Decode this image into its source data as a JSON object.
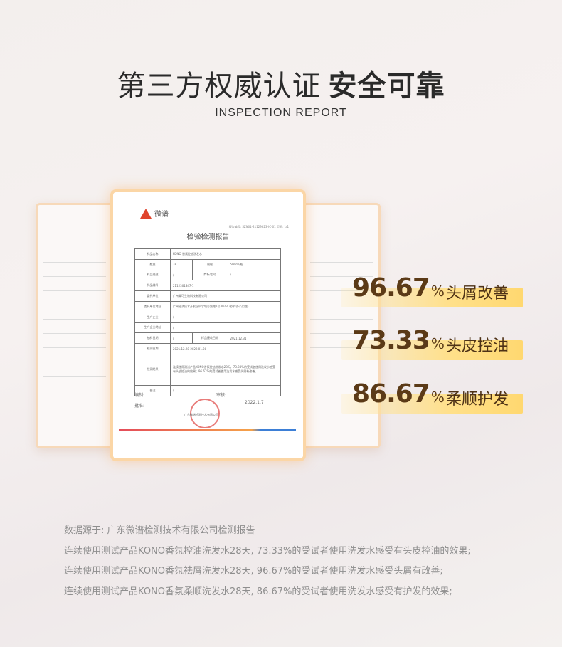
{
  "header": {
    "title_light": "第三方权威认证",
    "title_bold": "安全可靠",
    "subtitle": "INSPECTION REPORT"
  },
  "report": {
    "logo_text": "微谱",
    "doc_no": "报告编号: SZN01-21129823-JC-01  页码: 1/1",
    "title": "检验检测报告",
    "rows": [
      {
        "k": "样品名称",
        "v": "KONO 香氛控油洗发水"
      },
      {
        "k": "数量",
        "v": "3A",
        "k2": "规格",
        "v2": "500ml/瓶"
      },
      {
        "k": "样品描述",
        "v": "/",
        "k2": "商标/型号",
        "v2": "/"
      },
      {
        "k": "样品编号",
        "v": "2112301847-1"
      },
      {
        "k": "委托单位",
        "v": "广州美可生物科技有限公司"
      },
      {
        "k": "委托单位地址",
        "v": "广州经济技术开发区科学城彩频路7号302B（仅作办公用途）"
      },
      {
        "k": "生产企业",
        "v": "/"
      },
      {
        "k": "生产企业地址",
        "v": "/"
      },
      {
        "k": "抽样日期",
        "v": "/",
        "k2": "样品接收日期",
        "v2": "2021.12.31"
      },
      {
        "k": "检测日期",
        "v": "2021.12.28-2022.01.28"
      },
      {
        "k": "检测结果",
        "v": "连续使用测试产品KONO香氛控油洗发水28天，73.33%的受试者使用洗发水感受有头皮控油的效果；96.67%的受试者使用洗发水感受头屑有改善。"
      },
      {
        "k": "备注",
        "v": "/"
      }
    ],
    "sign1": "编制:",
    "sign2": "审核:",
    "sign3": "批准:",
    "date": "2022.1.7",
    "company": "广东微谱检测技术有限公司"
  },
  "stats": [
    {
      "value": "96.67",
      "unit": "%",
      "label": "头屑改善"
    },
    {
      "value": "73.33",
      "unit": "%",
      "label": "头皮控油"
    },
    {
      "value": "86.67",
      "unit": "%",
      "label": "柔顺护发"
    }
  ],
  "notes": [
    "数据源于: 广东微谱检测技术有限公司检测报告",
    "连续使用测试产品KONO香氛控油洗发水28天, 73.33%的受试者使用洗发水感受有头皮控油的效果;",
    "连续使用测试产品KONO香氛祛屑洗发水28天, 96.67%的受试者使用洗发水感受头屑有改善;",
    "连续使用测试产品KONO香氛柔顺洗发水28天, 86.67%的受试者使用洗发水感受有护发的效果;"
  ],
  "colors": {
    "stat_text": "#5b3a17",
    "bar": "#ffd870",
    "card_border": "#fbd6a6"
  }
}
